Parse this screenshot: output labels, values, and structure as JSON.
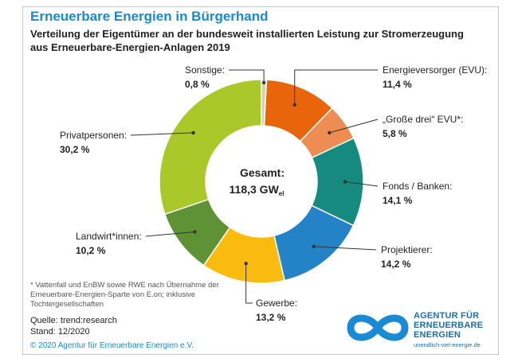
{
  "header": {
    "title": "Erneuerbare Energien in Bürgerhand",
    "subtitle": "Verteilung der Eigentümer an der bundesweit installierten Leistung zur Stromerzeugung aus Erneuerbare-Energien-Anlagen 2019"
  },
  "center": {
    "label": "Gesamt:",
    "value": "118,3 GW",
    "unit_sub": "el"
  },
  "chart_data": {
    "type": "pie",
    "variant": "donut",
    "total": "118,3 GWel",
    "slices": [
      {
        "label": "Sonstige:",
        "value_text": "0,8 %",
        "value": 0.8,
        "color": "#c9d8a8"
      },
      {
        "label": "Energieversorger (EVU):",
        "value_text": "11,4 %",
        "value": 11.4,
        "color": "#e8650c"
      },
      {
        "label": "„Große drei“ EVU*:",
        "value_text": "5,8 %",
        "value": 5.8,
        "color": "#ee8d53"
      },
      {
        "label": "Fonds / Banken:",
        "value_text": "14,1 %",
        "value": 14.1,
        "color": "#178a80"
      },
      {
        "label": "Projektierer:",
        "value_text": "14,2 %",
        "value": 14.2,
        "color": "#2482c7"
      },
      {
        "label": "Gewerbe:",
        "value_text": "13,2 %",
        "value": 13.2,
        "color": "#f9bb10"
      },
      {
        "label": "Landwirt*innen:",
        "value_text": "10,2 %",
        "value": 10.2,
        "color": "#5e9234"
      },
      {
        "label": "Privatpersonen:",
        "value_text": "30,2 %",
        "value": 30.2,
        "color": "#aac82a"
      }
    ]
  },
  "footnote": "* Vattenfall und EnBW sowie RWE nach Übernahme der Erneuerbare-Energien-Sparte von E.on; inklusive Tochtergesellschaften",
  "source": {
    "line1": "Quelle: trend:research",
    "line2": "Stand: 12/2020"
  },
  "copyright": "© 2020 Agentur für Erneuerbare Energien e.V.",
  "logo": {
    "line1": "AGENTUR FÜR",
    "line2": "ERNEUERBARE",
    "line3": "ENERGIEN",
    "url": "unendlich-viel-energie.de",
    "color": "#1a8ad4"
  }
}
